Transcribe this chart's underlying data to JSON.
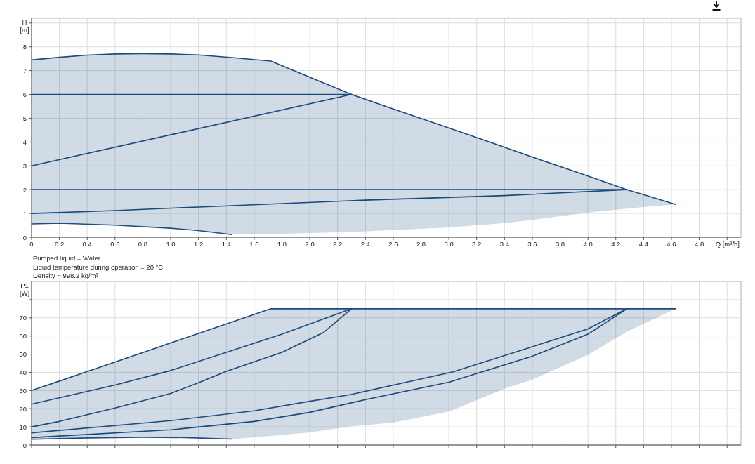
{
  "chart_data": [
    {
      "type": "line",
      "xlabel": "Q [m³/h]",
      "ylabel": "H [m]",
      "xlim": [
        0,
        5.1
      ],
      "ylim": [
        0,
        9.2
      ],
      "xticks": [
        0,
        0.2,
        0.4,
        0.6,
        0.8,
        {
          "value": 1,
          "label": "1.0"
        },
        1.2,
        1.4,
        1.6,
        1.8,
        {
          "value": 2,
          "label": "2.0"
        },
        2.2,
        2.4,
        2.6,
        2.8,
        {
          "value": 3,
          "label": "3.0"
        },
        3.2,
        3.4,
        3.6,
        3.8,
        {
          "value": 4,
          "label": "4.0"
        },
        4.2,
        4.4,
        4.6,
        4.8,
        {
          "value": 5,
          "label": null
        }
      ],
      "yticks": [
        0,
        1,
        2,
        3,
        4,
        5,
        6,
        7,
        8,
        {
          "value": 9,
          "label": null
        }
      ],
      "grid": true,
      "series": [
        {
          "color": "#1b4a7c",
          "x": [
            0,
            0.2,
            0.4,
            0.6,
            0.8,
            1,
            1.2,
            1.44,
            1.72,
            2,
            2.3,
            2.6,
            3,
            3.4,
            3.6,
            4,
            4.28,
            4.4,
            4.63
          ],
          "values": [
            7.45,
            7.56,
            7.65,
            7.7,
            7.71,
            7.7,
            7.66,
            7.55,
            7.4,
            6.72,
            6,
            5.39,
            4.59,
            3.78,
            3.37,
            2.57,
            2,
            1.79,
            1.38
          ],
          "upper": [
            7.45,
            7.56,
            7.65,
            7.7,
            7.71,
            7.7,
            7.66,
            7.55,
            7.4,
            6.72,
            6,
            5.39,
            4.59,
            3.78,
            3.37,
            2.57,
            2,
            1.79,
            1.38
          ],
          "lower": [
            0.56,
            0.59,
            0.57,
            0.51,
            0.45,
            0.38,
            0.28,
            0.11,
            0.14,
            0.18,
            0.22,
            0.3,
            0.41,
            0.6,
            0.73,
            1.04,
            1.2,
            1.27,
            1.38
          ]
        },
        {
          "color": "#1c4b7d",
          "x": [
            0,
            2.3
          ],
          "values": [
            6,
            6
          ]
        },
        {
          "color": "#1a497b",
          "x": [
            0,
            2.3
          ],
          "values": [
            3,
            6
          ]
        },
        {
          "color": "#1d4c7e",
          "x": [
            0,
            4.28
          ],
          "values": [
            2,
            2
          ]
        },
        {
          "color": "#19487a",
          "x": [
            0,
            0.6,
            1.2,
            2.4,
            3.4,
            4.28
          ],
          "values": [
            1,
            1.12,
            1.27,
            1.56,
            1.75,
            2
          ]
        },
        {
          "color": "#1e4d7f",
          "x": [
            0,
            0.2,
            0.6,
            1,
            1.2,
            1.44
          ],
          "values": [
            0.56,
            0.59,
            0.51,
            0.38,
            0.28,
            0.11
          ]
        }
      ]
    },
    {
      "type": "line",
      "ylabel": "P1 [W]",
      "xlim": [
        0,
        5.1
      ],
      "ylim": [
        0,
        90
      ],
      "tick_labels": "y",
      "annotations": [
        "Pumped liquid = Water",
        "Liquid temperature during operation = 20 °C",
        "Density = 998.2 kg/m³"
      ],
      "xticks": [
        0,
        0.2,
        0.4,
        0.6,
        0.8,
        1,
        1.2,
        1.4,
        1.6,
        1.8,
        2,
        2.2,
        2.4,
        2.6,
        2.8,
        3,
        3.2,
        3.4,
        3.6,
        3.8,
        4,
        4.2,
        4.4,
        4.6,
        4.8,
        5
      ],
      "yticks": [
        0,
        10,
        20,
        30,
        40,
        50,
        60,
        70,
        {
          "value": 80,
          "label": null
        }
      ],
      "grid": true,
      "series": [
        {
          "color": "#1b4a7c",
          "x": [
            0,
            0.2,
            0.4,
            0.6,
            0.8,
            1,
            1.2,
            1.44,
            1.72,
            2,
            2.3,
            2.6,
            3,
            3.4,
            3.6,
            4,
            4.28,
            4.4,
            4.63
          ],
          "values": [
            30,
            35.2,
            40.5,
            45.7,
            50.9,
            56.2,
            61.4,
            67.7,
            75,
            75,
            75,
            75,
            75,
            75,
            75,
            75,
            75,
            75,
            75
          ],
          "upper": [
            30,
            35.2,
            40.5,
            45.7,
            50.9,
            56.2,
            61.4,
            67.7,
            75,
            75,
            75,
            75,
            75,
            75,
            75,
            75,
            75,
            75,
            75
          ],
          "lower": [
            3.2,
            3.6,
            3.9,
            4.1,
            4.3,
            4.1,
            3.9,
            3.3,
            5,
            7,
            10.3,
            12.4,
            18.4,
            31,
            36,
            49.6,
            62.4,
            66.7,
            75
          ]
        },
        {
          "color": "#1c4b7d",
          "x": [
            0,
            0.6,
            1,
            1.4,
            1.8,
            2.3
          ],
          "values": [
            22.5,
            33,
            41,
            51,
            61,
            75
          ]
        },
        {
          "color": "#1a497b",
          "x": [
            0,
            0.2,
            0.6,
            1,
            1.2,
            1.4,
            1.8,
            2.1,
            2.3
          ],
          "values": [
            10,
            13,
            20.4,
            28.4,
            34.3,
            40.6,
            51,
            62,
            75
          ]
        },
        {
          "color": "#1d4c7e",
          "x": [
            0,
            1,
            1.6,
            2,
            2.29,
            3.03,
            3.58,
            4,
            4.28
          ],
          "values": [
            6.7,
            13.4,
            18.8,
            24.1,
            27.7,
            40.3,
            53.6,
            63.9,
            75
          ]
        },
        {
          "color": "#19487a",
          "x": [
            0,
            1,
            1.6,
            2,
            2.4,
            3,
            3.6,
            4,
            4.28
          ],
          "values": [
            4.1,
            8.4,
            13,
            18,
            25,
            34.6,
            48.9,
            61,
            75
          ]
        },
        {
          "color": "#1e4d7f",
          "x": [
            0,
            0.4,
            0.8,
            1.1,
            1.44
          ],
          "values": [
            3.2,
            3.9,
            4.3,
            4.1,
            3.3
          ]
        }
      ]
    }
  ]
}
